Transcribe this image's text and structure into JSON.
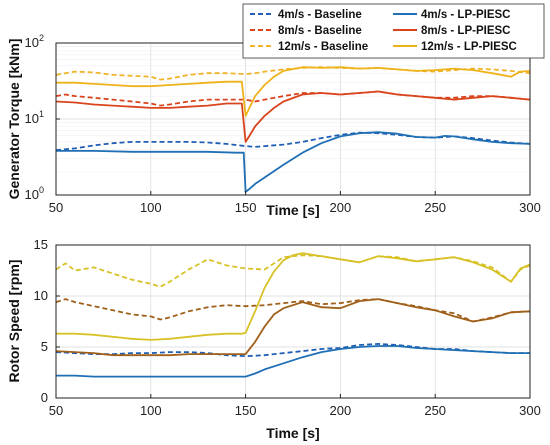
{
  "chart_data": [
    {
      "type": "line",
      "ylabel": "Generator Torque [kNm]",
      "xlabel": "Time [s]",
      "xlim": [
        50,
        300
      ],
      "ylim": [
        1,
        100
      ],
      "yscale": "log",
      "grid": true,
      "legend_position": "top-right",
      "x_ticks": [
        "50",
        "100",
        "150",
        "200",
        "250",
        "300"
      ],
      "y_ticks": [
        {
          "base": "10",
          "exp": "0"
        },
        {
          "base": "10",
          "exp": "1"
        },
        {
          "base": "10",
          "exp": "2"
        }
      ],
      "legend": [
        {
          "label": "4m/s - Baseline",
          "color": "#1f5fb5",
          "dash": true
        },
        {
          "label": "4m/s - LP-PIESC",
          "color": "#1f6fb5",
          "dash": false
        },
        {
          "label": "8m/s - Baseline",
          "color": "#d9441c",
          "dash": true
        },
        {
          "label": "8m/s - LP-PIESC",
          "color": "#d9441c",
          "dash": false
        },
        {
          "label": "12m/s - Baseline",
          "color": "#f0b429",
          "dash": true
        },
        {
          "label": "12m/s - LP-PIESC",
          "color": "#eeb21a",
          "dash": false
        }
      ],
      "series": [
        {
          "color": "#1f5fb5",
          "dash": true,
          "x": [
            50,
            60,
            70,
            80,
            90,
            100,
            110,
            120,
            130,
            140,
            150,
            155,
            160,
            170,
            180,
            190,
            200,
            210,
            220,
            230,
            240,
            250,
            260,
            270,
            280,
            290,
            300
          ],
          "y": [
            3.9,
            4.1,
            4.5,
            4.8,
            5,
            5,
            5,
            5,
            4.9,
            4.7,
            4.4,
            4.3,
            4.4,
            4.6,
            5,
            5.6,
            6.2,
            6.6,
            6.5,
            6.2,
            5.8,
            5.7,
            5.9,
            5.6,
            5.2,
            4.9,
            4.7
          ]
        },
        {
          "color": "#1f6fb5",
          "dash": false,
          "x": [
            50,
            70,
            90,
            110,
            130,
            145,
            149,
            150,
            152,
            155,
            160,
            170,
            180,
            190,
            200,
            210,
            220,
            230,
            240,
            250,
            255,
            260,
            270,
            280,
            290,
            300
          ],
          "y": [
            3.8,
            3.8,
            3.7,
            3.7,
            3.7,
            3.6,
            3.6,
            1.1,
            1.2,
            1.4,
            1.7,
            2.5,
            3.6,
            4.8,
            5.9,
            6.5,
            6.7,
            6.4,
            5.8,
            5.7,
            6,
            5.9,
            5.4,
            5,
            4.8,
            4.7
          ]
        },
        {
          "color": "#d9441c",
          "dash": true,
          "x": [
            50,
            55,
            60,
            70,
            80,
            90,
            100,
            105,
            110,
            120,
            130,
            140,
            145,
            150,
            155,
            160,
            170,
            180,
            190,
            200,
            210,
            220,
            230,
            240,
            250,
            260,
            270,
            280,
            290,
            300
          ],
          "y": [
            20,
            21,
            20,
            19,
            18,
            17,
            16,
            15,
            15.5,
            17,
            18,
            18,
            18,
            18,
            17,
            18,
            20,
            22,
            22,
            21,
            22,
            23,
            21,
            20,
            19,
            19,
            20,
            20,
            19,
            18
          ]
        },
        {
          "color": "#d9441c",
          "dash": false,
          "x": [
            50,
            60,
            70,
            80,
            90,
            100,
            110,
            120,
            130,
            140,
            148,
            150,
            152,
            155,
            160,
            165,
            170,
            180,
            190,
            200,
            210,
            220,
            230,
            240,
            250,
            260,
            270,
            280,
            290,
            300
          ],
          "y": [
            17,
            16.5,
            15.5,
            15,
            14.5,
            14,
            14,
            14.5,
            15,
            16,
            16,
            5,
            6,
            8,
            11,
            14,
            17,
            21,
            22,
            21,
            22,
            23,
            21,
            20,
            19,
            18,
            19,
            20,
            19,
            18
          ]
        },
        {
          "color": "#f0b429",
          "dash": true,
          "x": [
            50,
            55,
            60,
            70,
            80,
            90,
            100,
            105,
            110,
            120,
            130,
            140,
            150,
            155,
            160,
            170,
            180,
            190,
            200,
            210,
            220,
            230,
            240,
            250,
            260,
            270,
            280,
            290,
            300
          ],
          "y": [
            38,
            40,
            42,
            41,
            38,
            37,
            36,
            33,
            34,
            38,
            40,
            40,
            39,
            40,
            42,
            45,
            47,
            48,
            47,
            46,
            47,
            45,
            43,
            42,
            44,
            46,
            45,
            43,
            40
          ]
        },
        {
          "color": "#eeb21a",
          "dash": false,
          "x": [
            50,
            60,
            70,
            80,
            90,
            100,
            110,
            120,
            130,
            140,
            148,
            150,
            152,
            155,
            160,
            165,
            170,
            180,
            190,
            200,
            210,
            220,
            230,
            240,
            250,
            260,
            270,
            280,
            290,
            295,
            300
          ],
          "y": [
            30,
            30,
            29,
            28,
            27,
            27,
            28,
            29,
            30,
            31,
            31,
            11,
            14,
            20,
            28,
            36,
            43,
            48,
            47,
            48,
            46,
            47,
            45,
            43,
            44,
            46,
            44,
            40,
            36,
            42,
            43
          ]
        }
      ]
    },
    {
      "type": "line",
      "ylabel": "Rotor Speed [rpm]",
      "xlabel": "Time [s]",
      "xlim": [
        50,
        300
      ],
      "ylim": [
        0,
        15
      ],
      "grid": true,
      "x_ticks": [
        "50",
        "100",
        "150",
        "200",
        "250",
        "300"
      ],
      "y_ticks": [
        "0",
        "5",
        "10",
        "15"
      ],
      "series": [
        {
          "color": "#1f5fb5",
          "dash": true,
          "x": [
            50,
            60,
            70,
            80,
            90,
            100,
            110,
            120,
            130,
            140,
            150,
            160,
            170,
            180,
            190,
            200,
            210,
            220,
            230,
            240,
            250,
            260,
            270,
            280,
            290,
            300
          ],
          "y": [
            4.5,
            4.4,
            4.3,
            4.3,
            4.4,
            4.4,
            4.5,
            4.5,
            4.4,
            4.2,
            4.1,
            4.2,
            4.4,
            4.6,
            4.8,
            4.9,
            5.2,
            5.3,
            5.2,
            5.0,
            4.8,
            4.8,
            4.6,
            4.5,
            4.4,
            4.4
          ]
        },
        {
          "color": "#1f6fb5",
          "dash": false,
          "x": [
            50,
            60,
            70,
            80,
            90,
            100,
            110,
            120,
            130,
            140,
            148,
            150,
            155,
            160,
            170,
            180,
            190,
            200,
            210,
            220,
            230,
            240,
            250,
            260,
            270,
            280,
            290,
            300
          ],
          "y": [
            2.2,
            2.2,
            2.1,
            2.1,
            2.1,
            2.1,
            2.1,
            2.1,
            2.1,
            2.1,
            2.1,
            2.1,
            2.4,
            2.8,
            3.4,
            4.0,
            4.5,
            4.8,
            5.0,
            5.1,
            5.1,
            4.9,
            4.8,
            4.7,
            4.6,
            4.5,
            4.4,
            4.4
          ]
        },
        {
          "color": "#a0601a",
          "dash": true,
          "x": [
            50,
            55,
            60,
            70,
            80,
            90,
            100,
            105,
            110,
            120,
            130,
            140,
            150,
            160,
            170,
            180,
            190,
            200,
            210,
            220,
            230,
            240,
            250,
            260,
            270,
            280,
            290,
            300
          ],
          "y": [
            9.4,
            9.7,
            9.4,
            9.0,
            8.6,
            8.2,
            8.0,
            7.7,
            7.9,
            8.5,
            8.9,
            9.1,
            9.0,
            9.1,
            9.3,
            9.5,
            9.2,
            9.3,
            9.6,
            9.7,
            9.3,
            9.0,
            8.6,
            8.3,
            7.5,
            7.9,
            8.4,
            8.5
          ]
        },
        {
          "color": "#a0601a",
          "dash": false,
          "x": [
            50,
            60,
            70,
            80,
            90,
            100,
            110,
            120,
            130,
            140,
            148,
            150,
            155,
            160,
            165,
            170,
            180,
            190,
            200,
            210,
            220,
            230,
            240,
            250,
            260,
            270,
            280,
            290,
            300
          ],
          "y": [
            4.6,
            4.5,
            4.4,
            4.2,
            4.2,
            4.2,
            4.2,
            4.3,
            4.3,
            4.3,
            4.3,
            4.3,
            5.5,
            7.0,
            8.2,
            8.8,
            9.4,
            8.9,
            8.8,
            9.5,
            9.7,
            9.3,
            8.9,
            8.6,
            8.0,
            7.5,
            7.8,
            8.4,
            8.5
          ]
        },
        {
          "color": "#d8c227",
          "dash": true,
          "x": [
            50,
            55,
            60,
            70,
            80,
            90,
            100,
            105,
            110,
            120,
            130,
            140,
            150,
            160,
            165,
            170,
            180,
            190,
            200,
            210,
            220,
            230,
            240,
            250,
            260,
            270,
            280,
            290,
            295,
            300
          ],
          "y": [
            12.6,
            13.2,
            12.5,
            12.8,
            12.2,
            11.6,
            11.2,
            10.9,
            11.4,
            12.6,
            13.6,
            13.0,
            12.7,
            12.6,
            13.2,
            13.8,
            14.0,
            13.9,
            13.6,
            13.3,
            13.9,
            13.8,
            13.4,
            13.6,
            13.8,
            13.4,
            12.8,
            11.4,
            12.6,
            13.0
          ]
        },
        {
          "color": "#d8c227",
          "dash": false,
          "x": [
            50,
            60,
            70,
            80,
            90,
            100,
            110,
            120,
            130,
            140,
            148,
            150,
            155,
            160,
            165,
            170,
            175,
            180,
            190,
            200,
            210,
            220,
            230,
            240,
            250,
            260,
            270,
            280,
            290,
            295,
            300
          ],
          "y": [
            6.3,
            6.3,
            6.2,
            6.0,
            5.8,
            5.7,
            5.8,
            6.0,
            6.2,
            6.3,
            6.3,
            6.4,
            8.5,
            10.8,
            12.4,
            13.5,
            14.0,
            14.2,
            13.9,
            13.6,
            13.3,
            13.9,
            13.7,
            13.4,
            13.6,
            13.8,
            13.3,
            12.6,
            11.4,
            12.7,
            13.1
          ]
        }
      ]
    }
  ]
}
